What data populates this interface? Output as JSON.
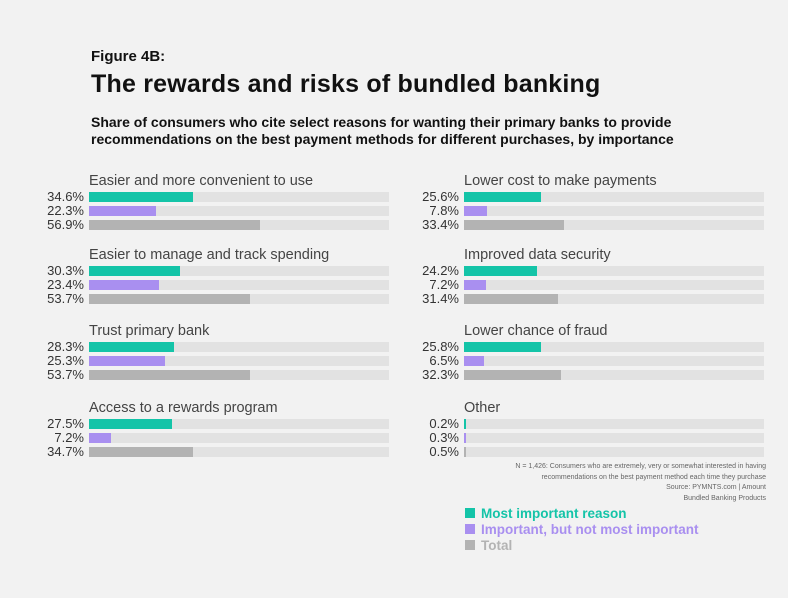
{
  "figure_label": "Figure 4B:",
  "title": "The rewards and risks of bundled banking",
  "subtitle": "Share of consumers who cite select reasons for wanting their primary banks to provide recommendations on the best payment methods for different purchases, by importance",
  "footnote": [
    "N = 1,426: Consumers who are extremely, very or somewhat interested in having",
    "recommendations on the best payment method each time they purchase",
    "Source: PYMNTS.com | Amount",
    "Bundled Banking Products"
  ],
  "legend": [
    {
      "label": "Most important reason",
      "color": "#14c4a8"
    },
    {
      "label": "Important, but not most important",
      "color": "#a98ff0"
    },
    {
      "label": "Total",
      "color": "#b3b3b3"
    }
  ],
  "chart_data": {
    "type": "bar",
    "orientation": "horizontal",
    "xlim": [
      0,
      100
    ],
    "unit": "%",
    "series_names": [
      "Most important reason",
      "Important, but not most important",
      "Total"
    ],
    "groups": [
      {
        "category": "Easier and more convenient to use",
        "values": [
          34.6,
          22.3,
          56.9
        ],
        "labels": [
          "34.6%",
          "22.3%",
          "56.9%"
        ]
      },
      {
        "category": "Easier to manage and track spending",
        "values": [
          30.3,
          23.4,
          53.7
        ],
        "labels": [
          "30.3%",
          "23.4%",
          "53.7%"
        ]
      },
      {
        "category": "Trust primary bank",
        "values": [
          28.3,
          25.3,
          53.7
        ],
        "labels": [
          "28.3%",
          "25.3%",
          "53.7%"
        ]
      },
      {
        "category": "Access to a rewards program",
        "values": [
          27.5,
          7.2,
          34.7
        ],
        "labels": [
          "27.5%",
          "7.2%",
          "34.7%"
        ]
      },
      {
        "category": "Lower cost to make payments",
        "values": [
          25.6,
          7.8,
          33.4
        ],
        "labels": [
          "25.6%",
          "7.8%",
          "33.4%"
        ]
      },
      {
        "category": "Improved data security",
        "values": [
          24.2,
          7.2,
          31.4
        ],
        "labels": [
          "24.2%",
          "7.2%",
          "31.4%"
        ]
      },
      {
        "category": "Lower chance of fraud",
        "values": [
          25.8,
          6.5,
          32.3
        ],
        "labels": [
          "25.8%",
          "6.5%",
          "32.3%"
        ]
      },
      {
        "category": "Other",
        "values": [
          0.2,
          0.3,
          0.5
        ],
        "labels": [
          "0.2%",
          "0.3%",
          "0.5%"
        ]
      }
    ]
  }
}
